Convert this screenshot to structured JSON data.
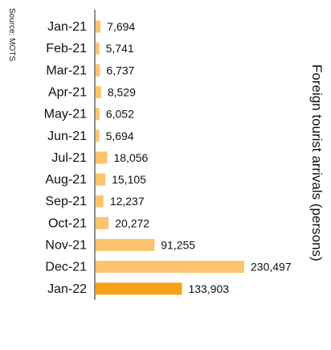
{
  "source_note": "Source: MOTS",
  "chart_data": {
    "type": "bar",
    "orientation": "horizontal",
    "categories": [
      "Jan-21",
      "Feb-21",
      "Mar-21",
      "Apr-21",
      "May-21",
      "Jun-21",
      "Jul-21",
      "Aug-21",
      "Sep-21",
      "Oct-21",
      "Nov-21",
      "Dec-21",
      "Jan-22"
    ],
    "values": [
      7694,
      5741,
      6737,
      8529,
      6052,
      5694,
      18056,
      15105,
      12237,
      20272,
      91255,
      230497,
      133903
    ],
    "value_labels": [
      "7,694",
      "5,741",
      "6,737",
      "8,529",
      "6,052",
      "5,694",
      "18,056",
      "15,105",
      "12,237",
      "20,272",
      "91,255",
      "230,497",
      "133,903"
    ],
    "title": "",
    "xlabel": "",
    "ylabel": "Foreign tourist arrivals (persons)",
    "xlim": [
      0,
      230497
    ],
    "grid": false,
    "colors": {
      "bar": "#fbc56e",
      "highlight": "#f7a11a",
      "axis": "#444444"
    },
    "highlight_index": 12
  }
}
